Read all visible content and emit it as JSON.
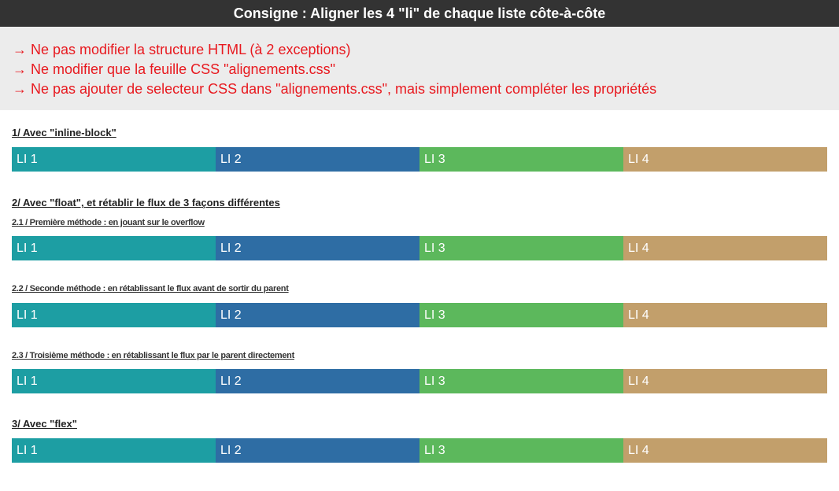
{
  "header": {
    "title": "Consigne : Aligner les 4 \"li\" de chaque liste côte-à-côte"
  },
  "consigne": {
    "rules": [
      "→ Ne pas modifier la structure HTML (à 2 exceptions)",
      "→ Ne modifier que la feuille CSS \"alignements.css\"",
      "→ Ne pas ajouter de selecteur CSS dans \"alignements.css\", mais simplement compléter les propriétés"
    ]
  },
  "colors": {
    "li1": "#1d9ea3",
    "li2": "#2e6da4",
    "li3": "#5cb85c",
    "li4": "#c29f6b"
  },
  "sections": {
    "s1": {
      "title": "1/ Avec \"inline-block\""
    },
    "s2": {
      "title": "2/ Avec \"float\", et rétablir le flux de 3 façons différentes"
    },
    "s21": {
      "title": "2.1 / Première méthode : en jouant sur le overflow"
    },
    "s22": {
      "title": "2.2 / Seconde méthode : en rétablissant le flux avant de sortir du parent"
    },
    "s23": {
      "title": "2.3 / Troisième méthode : en rétablissant le flux par le parent directement"
    },
    "s3": {
      "title": "3/ Avec \"flex\""
    }
  },
  "items": [
    "LI 1",
    "LI 2",
    "LI 3",
    "LI 4"
  ]
}
